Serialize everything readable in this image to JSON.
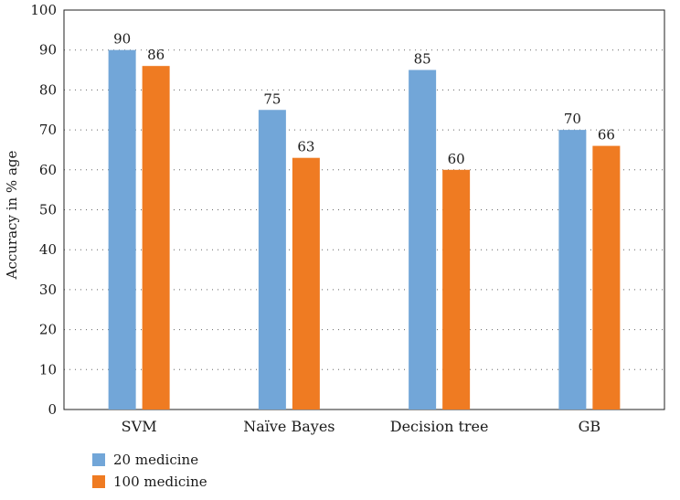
{
  "chart_data": {
    "type": "bar",
    "title": "",
    "xlabel": "",
    "ylabel": "Accuracy in % age",
    "ylim": [
      0,
      100
    ],
    "yticks": [
      0,
      10,
      20,
      30,
      40,
      50,
      60,
      70,
      80,
      90,
      100
    ],
    "categories": [
      "SVM",
      "Naïve Bayes",
      "Decision tree",
      "GB"
    ],
    "series": [
      {
        "name": "20 medicine",
        "color": "#72a6d8",
        "values": [
          90,
          75,
          85,
          70
        ]
      },
      {
        "name": "100 medicine",
        "color": "#ef7b22",
        "values": [
          86,
          63,
          60,
          66
        ]
      }
    ],
    "grid": "horizontal dotted",
    "legend_position": "bottom-left"
  }
}
